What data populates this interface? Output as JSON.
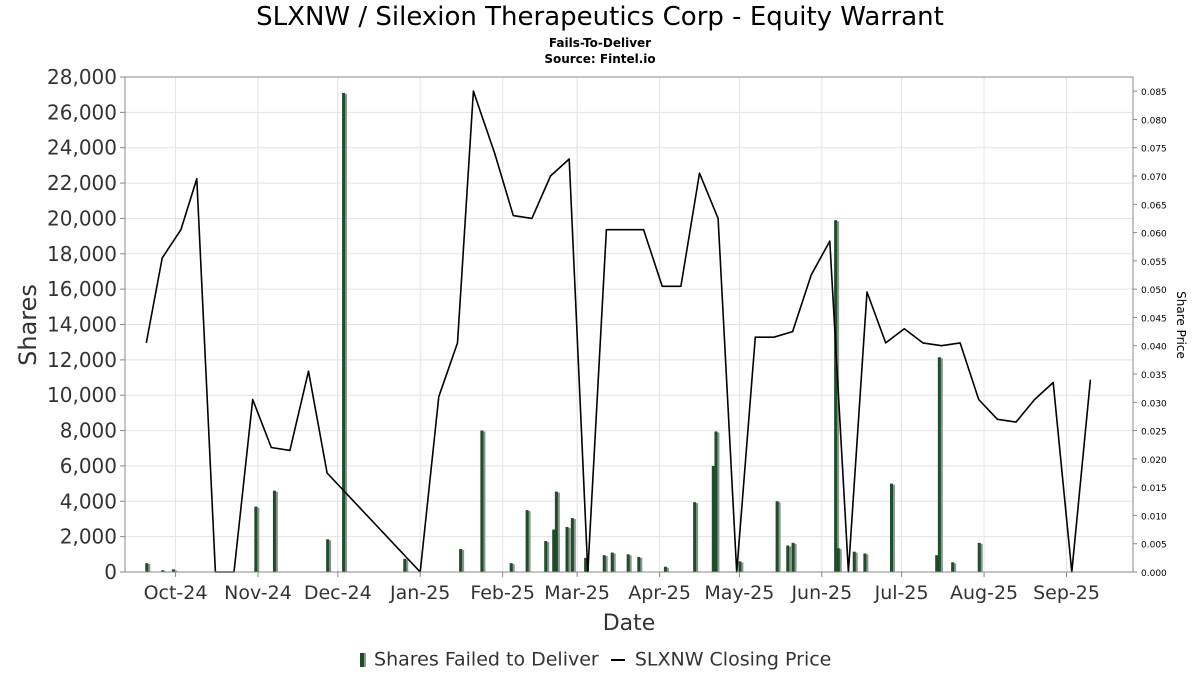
{
  "chart_data": {
    "type": "bar",
    "title": "SLXNW / Silexion Therapeutics Corp - Equity Warrant",
    "subtitle": "Fails-To-Deliver",
    "source": "Source: Fintel.io",
    "xlabel": "Date",
    "ylabel": "Shares",
    "y2label": "Share Price",
    "ylim": [
      0,
      28000
    ],
    "y2lim": [
      0,
      0.0875
    ],
    "y_ticks": [
      "0",
      "2,000",
      "4,000",
      "6,000",
      "8,000",
      "10,000",
      "12,000",
      "14,000",
      "16,000",
      "18,000",
      "20,000",
      "22,000",
      "24,000",
      "26,000",
      "28,000"
    ],
    "y2_ticks": [
      "0.000",
      "0.005",
      "0.010",
      "0.015",
      "0.020",
      "0.025",
      "0.030",
      "0.035",
      "0.040",
      "0.045",
      "0.050",
      "0.055",
      "0.060",
      "0.065",
      "0.070",
      "0.075",
      "0.080",
      "0.085"
    ],
    "x_ticks": [
      {
        "date": "2024-10-01",
        "label": "Oct-24"
      },
      {
        "date": "2024-11-01",
        "label": "Nov-24"
      },
      {
        "date": "2024-12-01",
        "label": "Dec-24"
      },
      {
        "date": "2025-01-01",
        "label": "Jan-25"
      },
      {
        "date": "2025-02-01",
        "label": "Feb-25"
      },
      {
        "date": "2025-03-01",
        "label": "Mar-25"
      },
      {
        "date": "2025-04-01",
        "label": "Apr-25"
      },
      {
        "date": "2025-05-01",
        "label": "May-25"
      },
      {
        "date": "2025-06-01",
        "label": "Jun-25"
      },
      {
        "date": "2025-07-01",
        "label": "Jul-25"
      },
      {
        "date": "2025-08-01",
        "label": "Aug-25"
      },
      {
        "date": "2025-09-01",
        "label": "Sep-25"
      }
    ],
    "x_range": [
      "2024-09-12",
      "2025-09-26"
    ],
    "grid": true,
    "legend_position": "bottom",
    "series": [
      {
        "name": "Shares Failed to Deliver",
        "type": "bar",
        "color": "#1e4d2b",
        "points": [
          [
            "2024-09-20",
            500
          ],
          [
            "2024-09-26",
            100
          ],
          [
            "2024-09-30",
            150
          ],
          [
            "2024-10-31",
            3700
          ],
          [
            "2024-11-07",
            4600
          ],
          [
            "2024-11-27",
            1850
          ],
          [
            "2024-12-03",
            27100
          ],
          [
            "2024-12-26",
            750
          ],
          [
            "2025-01-16",
            1300
          ],
          [
            "2025-01-24",
            8000
          ],
          [
            "2025-02-04",
            500
          ],
          [
            "2025-02-10",
            3500
          ],
          [
            "2025-02-17",
            1750
          ],
          [
            "2025-02-20",
            2400
          ],
          [
            "2025-02-21",
            4550
          ],
          [
            "2025-02-25",
            2550
          ],
          [
            "2025-02-27",
            3050
          ],
          [
            "2025-03-04",
            800
          ],
          [
            "2025-03-11",
            950
          ],
          [
            "2025-03-14",
            1100
          ],
          [
            "2025-03-20",
            1000
          ],
          [
            "2025-03-24",
            850
          ],
          [
            "2025-04-03",
            300
          ],
          [
            "2025-04-14",
            3950
          ],
          [
            "2025-04-21",
            6000
          ],
          [
            "2025-04-22",
            7950
          ],
          [
            "2025-05-01",
            600
          ],
          [
            "2025-05-15",
            4000
          ],
          [
            "2025-05-19",
            1500
          ],
          [
            "2025-05-21",
            1650
          ],
          [
            "2025-06-06",
            19900
          ],
          [
            "2025-06-07",
            1350
          ],
          [
            "2025-06-13",
            1150
          ],
          [
            "2025-06-17",
            1050
          ],
          [
            "2025-06-27",
            5000
          ],
          [
            "2025-07-14",
            950
          ],
          [
            "2025-07-15",
            12150
          ],
          [
            "2025-07-20",
            550
          ],
          [
            "2025-07-30",
            1650
          ]
        ]
      },
      {
        "name": "SLXNW Closing Price",
        "type": "line",
        "color": "#000000",
        "points": [
          [
            "2024-09-20",
            0.0405
          ],
          [
            "2024-09-26",
            0.0555
          ],
          [
            "2024-10-03",
            0.0605
          ],
          [
            "2024-10-09",
            0.0695
          ],
          [
            "2024-10-16",
            0.0
          ],
          [
            "2024-10-23",
            0.0
          ],
          [
            "2024-10-30",
            0.0305
          ],
          [
            "2024-11-06",
            0.022
          ],
          [
            "2024-11-13",
            0.0215
          ],
          [
            "2024-11-20",
            0.0355
          ],
          [
            "2024-11-27",
            0.0175
          ],
          [
            "2025-01-01",
            0.0
          ],
          [
            "2025-01-08",
            0.031
          ],
          [
            "2025-01-15",
            0.0405
          ],
          [
            "2025-01-21",
            0.085
          ],
          [
            "2025-01-29",
            0.074
          ],
          [
            "2025-02-05",
            0.063
          ],
          [
            "2025-02-12",
            0.0625
          ],
          [
            "2025-02-19",
            0.07
          ],
          [
            "2025-02-26",
            0.073
          ],
          [
            "2025-03-05",
            0.0
          ],
          [
            "2025-03-12",
            0.0605
          ],
          [
            "2025-03-26",
            0.0605
          ],
          [
            "2025-04-02",
            0.0505
          ],
          [
            "2025-04-09",
            0.0505
          ],
          [
            "2025-04-16",
            0.0705
          ],
          [
            "2025-04-23",
            0.0625
          ],
          [
            "2025-04-30",
            0.0
          ],
          [
            "2025-05-07",
            0.0415
          ],
          [
            "2025-05-14",
            0.0415
          ],
          [
            "2025-05-21",
            0.0425
          ],
          [
            "2025-05-28",
            0.0525
          ],
          [
            "2025-06-04",
            0.0585
          ],
          [
            "2025-06-11",
            0.0
          ],
          [
            "2025-06-18",
            0.0495
          ],
          [
            "2025-06-25",
            0.0405
          ],
          [
            "2025-07-02",
            0.043
          ],
          [
            "2025-07-09",
            0.0405
          ],
          [
            "2025-07-16",
            0.04
          ],
          [
            "2025-07-23",
            0.0405
          ],
          [
            "2025-07-30",
            0.0305
          ],
          [
            "2025-08-06",
            0.027
          ],
          [
            "2025-08-13",
            0.0265
          ],
          [
            "2025-08-20",
            0.0305
          ],
          [
            "2025-08-27",
            0.0335
          ],
          [
            "2025-09-03",
            0.0
          ],
          [
            "2025-09-10",
            0.034
          ]
        ]
      }
    ]
  }
}
